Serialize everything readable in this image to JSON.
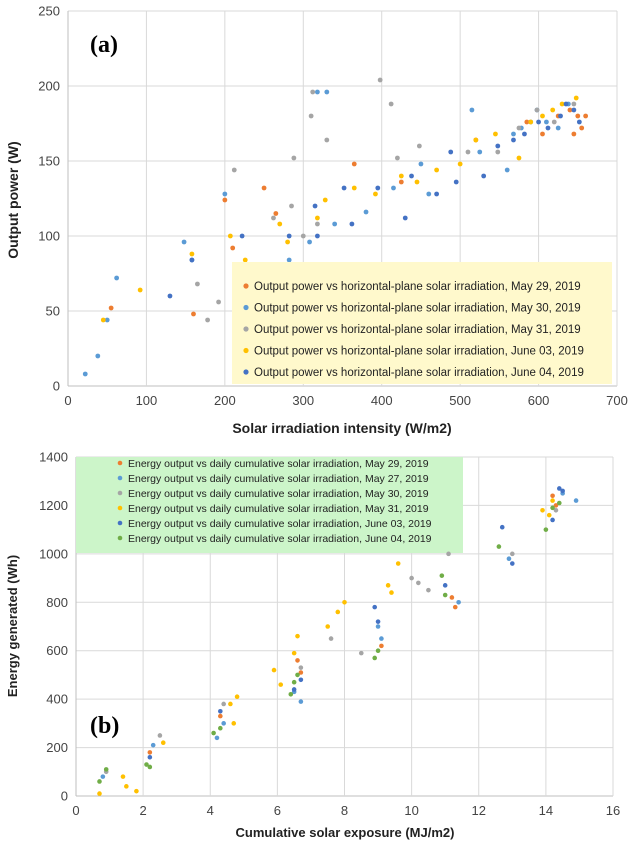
{
  "chart_data": [
    {
      "type": "scatter",
      "panel_label": "(a)",
      "xlabel": "Solar irradiation intensity (W/m2)",
      "ylabel": "Output power (W)",
      "xlim": [
        0,
        700
      ],
      "ylim": [
        0,
        250
      ],
      "xticks": [
        0,
        100,
        200,
        300,
        400,
        500,
        600,
        700
      ],
      "yticks": [
        0,
        50,
        100,
        150,
        200,
        250
      ],
      "grid": true,
      "legend_position": "bottom-right",
      "legend_bg": "#fff9cc",
      "series": [
        {
          "name": "Output power vs horizontal-plane solar  irradiation, May 29, 2019",
          "color": "#ed7d31",
          "points": [
            [
              55,
              52
            ],
            [
              160,
              48
            ],
            [
              200,
              124
            ],
            [
              210,
              92
            ],
            [
              250,
              132
            ],
            [
              265,
              115
            ],
            [
              365,
              148
            ],
            [
              425,
              136
            ],
            [
              520,
              164
            ],
            [
              585,
              176
            ],
            [
              605,
              168
            ],
            [
              625,
              180
            ],
            [
              640,
              184
            ],
            [
              645,
              168
            ],
            [
              650,
              180
            ],
            [
              655,
              172
            ],
            [
              660,
              180
            ]
          ]
        },
        {
          "name": "Output power vs horizontal-plane solar  irradiation, May 30, 2019",
          "color": "#5b9bd5",
          "points": [
            [
              22,
              8
            ],
            [
              38,
              20
            ],
            [
              50,
              44
            ],
            [
              62,
              72
            ],
            [
              148,
              96
            ],
            [
              158,
              84
            ],
            [
              200,
              128
            ],
            [
              230,
              80
            ],
            [
              282,
              84
            ],
            [
              308,
              96
            ],
            [
              318,
              196
            ],
            [
              330,
              196
            ],
            [
              340,
              108
            ],
            [
              380,
              116
            ],
            [
              415,
              132
            ],
            [
              450,
              148
            ],
            [
              460,
              128
            ],
            [
              515,
              184
            ],
            [
              525,
              156
            ],
            [
              560,
              144
            ],
            [
              568,
              168
            ],
            [
              578,
              172
            ],
            [
              590,
              176
            ],
            [
              598,
              184
            ],
            [
              610,
              176
            ],
            [
              625,
              172
            ],
            [
              638,
              188
            ]
          ]
        },
        {
          "name": "Output power vs horizontal-plane solar  irradiation, May 31, 2019",
          "color": "#a5a5a5",
          "points": [
            [
              165,
              68
            ],
            [
              178,
              44
            ],
            [
              192,
              56
            ],
            [
              212,
              144
            ],
            [
              245,
              64
            ],
            [
              262,
              112
            ],
            [
              285,
              120
            ],
            [
              288,
              152
            ],
            [
              300,
              100
            ],
            [
              310,
              180
            ],
            [
              312,
              196
            ],
            [
              318,
              108
            ],
            [
              330,
              164
            ],
            [
              398,
              204
            ],
            [
              412,
              188
            ],
            [
              420,
              152
            ],
            [
              448,
              160
            ],
            [
              510,
              156
            ],
            [
              548,
              156
            ],
            [
              575,
              172
            ],
            [
              598,
              184
            ],
            [
              620,
              176
            ],
            [
              645,
              188
            ]
          ]
        },
        {
          "name": "Output power vs horizontal-plane solar  irradiation, June 03, 2019",
          "color": "#ffc000",
          "points": [
            [
              45,
              44
            ],
            [
              92,
              64
            ],
            [
              158,
              88
            ],
            [
              207,
              100
            ],
            [
              226,
              84
            ],
            [
              270,
              108
            ],
            [
              280,
              96
            ],
            [
              318,
              112
            ],
            [
              328,
              124
            ],
            [
              365,
              132
            ],
            [
              392,
              128
            ],
            [
              425,
              140
            ],
            [
              445,
              136
            ],
            [
              470,
              144
            ],
            [
              500,
              148
            ],
            [
              520,
              164
            ],
            [
              545,
              168
            ],
            [
              575,
              152
            ],
            [
              590,
              176
            ],
            [
              605,
              180
            ],
            [
              618,
              184
            ],
            [
              630,
              188
            ],
            [
              648,
              192
            ]
          ]
        },
        {
          "name": "Output power vs horizontal-plane solar  irradiation, June 04, 2019",
          "color": "#4472c4",
          "points": [
            [
              130,
              60
            ],
            [
              158,
              84
            ],
            [
              222,
              100
            ],
            [
              255,
              76
            ],
            [
              282,
              100
            ],
            [
              315,
              120
            ],
            [
              318,
              100
            ],
            [
              352,
              132
            ],
            [
              362,
              108
            ],
            [
              395,
              132
            ],
            [
              430,
              112
            ],
            [
              438,
              140
            ],
            [
              470,
              128
            ],
            [
              488,
              156
            ],
            [
              495,
              136
            ],
            [
              530,
              140
            ],
            [
              548,
              160
            ],
            [
              568,
              164
            ],
            [
              582,
              168
            ],
            [
              600,
              176
            ],
            [
              612,
              172
            ],
            [
              628,
              180
            ],
            [
              635,
              188
            ],
            [
              645,
              184
            ],
            [
              652,
              176
            ]
          ]
        }
      ]
    },
    {
      "type": "scatter",
      "panel_label": "(b)",
      "xlabel": "Cumulative solar exposure (MJ/m2)",
      "ylabel": "Energy generated (Wh)",
      "xlim": [
        0,
        16
      ],
      "ylim": [
        0,
        1400
      ],
      "xticks": [
        0,
        2,
        4,
        6,
        8,
        10,
        12,
        14,
        16
      ],
      "yticks": [
        0,
        200,
        400,
        600,
        800,
        1000,
        1200,
        1400
      ],
      "grid": true,
      "legend_position": "top-left",
      "legend_bg": "#ccf5c9",
      "series": [
        {
          "name": "Energy output vs daily cumulative solar irradiation, May 29, 2019",
          "color": "#ed7d31",
          "points": [
            [
              2.2,
              180
            ],
            [
              4.3,
              330
            ],
            [
              6.6,
              560
            ],
            [
              6.7,
              510
            ],
            [
              9.1,
              620
            ],
            [
              11.2,
              820
            ],
            [
              11.3,
              780
            ],
            [
              14.2,
              1240
            ],
            [
              14.3,
              1200
            ]
          ]
        },
        {
          "name": "Energy output vs daily cumulative solar irradiation, May 27, 2019",
          "color": "#5b9bd5",
          "points": [
            [
              0.8,
              80
            ],
            [
              2.3,
              210
            ],
            [
              4.2,
              240
            ],
            [
              4.4,
              300
            ],
            [
              6.5,
              430
            ],
            [
              6.7,
              390
            ],
            [
              9.0,
              700
            ],
            [
              9.1,
              650
            ],
            [
              11.4,
              800
            ],
            [
              12.9,
              980
            ],
            [
              14.5,
              1250
            ],
            [
              14.9,
              1220
            ]
          ]
        },
        {
          "name": "Energy output vs daily cumulative solar irradiation, May 30, 2019",
          "color": "#a5a5a5",
          "points": [
            [
              0.9,
              100
            ],
            [
              2.5,
              250
            ],
            [
              4.4,
              380
            ],
            [
              6.7,
              530
            ],
            [
              7.6,
              650
            ],
            [
              8.5,
              590
            ],
            [
              10.0,
              900
            ],
            [
              10.2,
              880
            ],
            [
              10.5,
              850
            ],
            [
              11.1,
              1000
            ],
            [
              13.0,
              1000
            ],
            [
              14.3,
              1180
            ]
          ]
        },
        {
          "name": "Energy output vs daily cumulative solar irradiation, May 31, 2019",
          "color": "#ffc000",
          "points": [
            [
              0.7,
              10
            ],
            [
              1.4,
              80
            ],
            [
              1.5,
              40
            ],
            [
              1.8,
              20
            ],
            [
              2.6,
              220
            ],
            [
              4.6,
              380
            ],
            [
              4.7,
              300
            ],
            [
              4.8,
              410
            ],
            [
              5.9,
              520
            ],
            [
              6.1,
              460
            ],
            [
              6.5,
              590
            ],
            [
              6.6,
              660
            ],
            [
              7.5,
              700
            ],
            [
              7.8,
              760
            ],
            [
              8.0,
              800
            ],
            [
              9.3,
              870
            ],
            [
              9.6,
              960
            ],
            [
              9.4,
              840
            ],
            [
              13.9,
              1180
            ],
            [
              14.1,
              1160
            ],
            [
              14.2,
              1220
            ]
          ]
        },
        {
          "name": "Energy output vs daily cumulative solar irradiation, June 03, 2019",
          "color": "#4472c4",
          "points": [
            [
              2.2,
              160
            ],
            [
              4.3,
              350
            ],
            [
              6.5,
              440
            ],
            [
              6.7,
              480
            ],
            [
              8.9,
              780
            ],
            [
              9.0,
              720
            ],
            [
              11.0,
              870
            ],
            [
              12.7,
              1110
            ],
            [
              13.0,
              960
            ],
            [
              14.2,
              1140
            ],
            [
              14.4,
              1270
            ],
            [
              14.5,
              1260
            ]
          ]
        },
        {
          "name": "Energy output vs daily cumulative solar irradiation, June 04, 2019",
          "color": "#70ad47",
          "points": [
            [
              0.7,
              60
            ],
            [
              0.9,
              110
            ],
            [
              2.1,
              130
            ],
            [
              2.2,
              120
            ],
            [
              4.1,
              260
            ],
            [
              4.3,
              280
            ],
            [
              6.4,
              420
            ],
            [
              6.5,
              470
            ],
            [
              6.6,
              500
            ],
            [
              8.9,
              570
            ],
            [
              9.0,
              600
            ],
            [
              10.9,
              910
            ],
            [
              11.0,
              830
            ],
            [
              12.6,
              1030
            ],
            [
              14.0,
              1100
            ],
            [
              14.2,
              1190
            ],
            [
              14.4,
              1210
            ]
          ]
        }
      ]
    }
  ]
}
